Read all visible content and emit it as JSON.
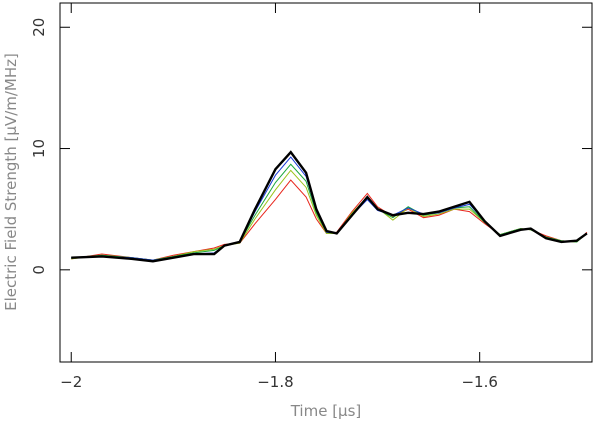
{
  "chart_data": {
    "type": "line",
    "x_label": "Time [μs]",
    "y_label": "Electric Field Strength [μV/m/MHz]",
    "x": [
      -2.0,
      -1.97,
      -1.94,
      -1.92,
      -1.9,
      -1.88,
      -1.86,
      -1.85,
      -1.835,
      -1.82,
      -1.8,
      -1.785,
      -1.77,
      -1.76,
      -1.75,
      -1.74,
      -1.725,
      -1.71,
      -1.7,
      -1.685,
      -1.67,
      -1.655,
      -1.64,
      -1.625,
      -1.61,
      -1.595,
      -1.58,
      -1.56,
      -1.55,
      -1.535,
      -1.52,
      -1.505,
      -1.495
    ],
    "series": [
      {
        "color": "#e8261c",
        "values": [
          0.9,
          1.3,
          1.0,
          0.8,
          1.2,
          1.5,
          1.8,
          2.1,
          2.2,
          3.8,
          5.8,
          7.4,
          6.0,
          4.2,
          3.0,
          3.1,
          4.8,
          6.3,
          5.2,
          4.4,
          5.0,
          4.3,
          4.5,
          5.0,
          4.8,
          3.8,
          2.9,
          3.4,
          3.3,
          2.8,
          2.4,
          2.3,
          3.1
        ]
      },
      {
        "color": "#9ac21a",
        "values": [
          0.9,
          1.2,
          1.0,
          0.8,
          1.1,
          1.5,
          1.7,
          2.0,
          2.2,
          4.2,
          6.6,
          8.2,
          6.8,
          4.5,
          3.0,
          3.0,
          4.7,
          6.0,
          5.1,
          4.1,
          5.1,
          4.4,
          4.6,
          5.0,
          5.0,
          3.9,
          2.9,
          3.4,
          3.3,
          2.7,
          2.4,
          2.3,
          3.0
        ]
      },
      {
        "color": "#1aa83c",
        "values": [
          1.0,
          1.2,
          1.0,
          0.8,
          1.1,
          1.4,
          1.6,
          2.0,
          2.3,
          4.5,
          7.2,
          8.7,
          7.3,
          4.7,
          3.1,
          3.0,
          4.6,
          5.9,
          5.0,
          4.3,
          5.2,
          4.5,
          4.7,
          5.1,
          5.2,
          3.9,
          2.9,
          3.4,
          3.3,
          2.7,
          2.4,
          2.3,
          3.0
        ]
      },
      {
        "color": "#1a3ad8",
        "values": [
          1.0,
          1.1,
          1.0,
          0.8,
          1.0,
          1.3,
          1.4,
          2.0,
          2.3,
          4.8,
          7.8,
          9.3,
          7.7,
          4.9,
          3.1,
          3.0,
          4.5,
          5.8,
          4.9,
          4.5,
          5.1,
          4.6,
          4.7,
          5.1,
          5.4,
          4.0,
          2.8,
          3.3,
          3.4,
          2.6,
          2.3,
          2.4,
          3.0
        ]
      },
      {
        "color": "#000000",
        "values": [
          1.0,
          1.1,
          0.9,
          0.7,
          1.0,
          1.3,
          1.3,
          2.0,
          2.3,
          5.0,
          8.3,
          9.7,
          8.0,
          5.0,
          3.2,
          3.0,
          4.5,
          6.0,
          5.0,
          4.5,
          4.7,
          4.6,
          4.8,
          5.2,
          5.6,
          4.0,
          2.8,
          3.3,
          3.4,
          2.6,
          2.3,
          2.4,
          3.0
        ]
      }
    ],
    "xlim": [
      -2.011,
      -1.49
    ],
    "ylim": [
      -7.6,
      22
    ],
    "xticks": [
      {
        "value": -2,
        "label": "−2"
      },
      {
        "value": -1.8,
        "label": "−1.8"
      },
      {
        "value": -1.6,
        "label": "−1.6"
      }
    ],
    "yticks": [
      0,
      10,
      20
    ]
  }
}
